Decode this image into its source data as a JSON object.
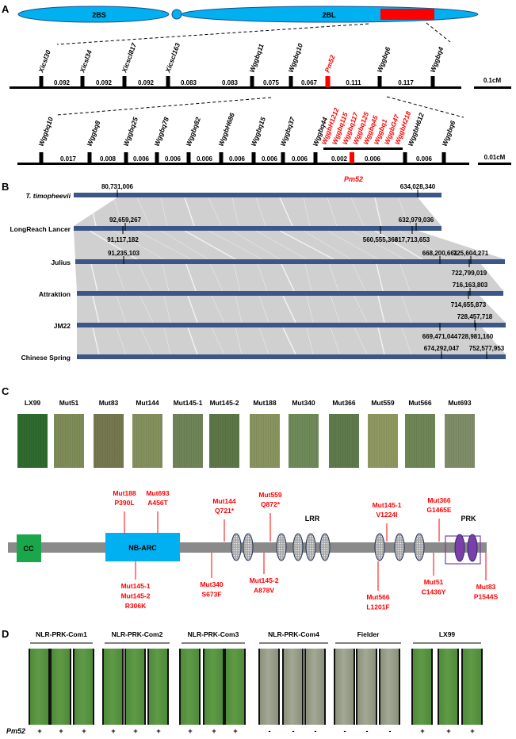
{
  "panel_labels": {
    "a": "A",
    "b": "B",
    "c": "C",
    "d": "D"
  },
  "colors": {
    "chromosome": "#00b0f0",
    "highlight_red": "#ff0000",
    "bar_blue": "#3b5687",
    "cc_green": "#1aa64a",
    "nbarc_blue": "#00b0f0",
    "prk_purple": "#7a3fa8",
    "backbone_gray": "#8a8a8a"
  },
  "panel_a": {
    "chromosome": {
      "short_arm": "2BS",
      "long_arm": "2BL"
    },
    "map1": {
      "markers": [
        "Xicsl30",
        "Xicsl34",
        "Xicscl817",
        "Xicscl163",
        "Wggbq11",
        "Wggbq10",
        "Pm52",
        "Wggbq6",
        "Wggbq4"
      ],
      "intervals": [
        "0.092",
        "0.092",
        "0.092",
        "0.083",
        "0.083",
        "0.075",
        "0.067",
        "0.111",
        "0.117"
      ],
      "scale": "0.1cM"
    },
    "map2": {
      "markers_black": [
        "Wggbq10",
        "Wggbq8",
        "Wggbq25",
        "Wggbq78",
        "Wggbq82",
        "WggbH686",
        "Wggbq15",
        "Wggbq37",
        "Wggbq44"
      ],
      "markers_red": [
        "WggbH1212",
        "Wggbq115",
        "Wggbq117",
        "Wggbq125",
        "Wggbq45",
        "Wggbq1",
        "WggbG47",
        "WggbH218"
      ],
      "markers_right": [
        "WggbH612",
        "Wggbq6"
      ],
      "intervals": [
        "0.017",
        "0.008",
        "0.006",
        "0.006",
        "0.006",
        "0.006",
        "0.006",
        "0.006",
        "0.002",
        "0.006",
        "0.006"
      ],
      "scale": "0.01cM"
    }
  },
  "panel_b": {
    "gene_label": "Pm52",
    "genomes": [
      {
        "name": "T. timopheevii",
        "above": [
          "80,731,006",
          "634,028,340"
        ],
        "below": []
      },
      {
        "name": "LongReach Lancer",
        "above": [
          "92,659,267",
          "632,979,036"
        ],
        "below": [
          "91,117,182",
          "560,555,363",
          "617,713,653"
        ]
      },
      {
        "name": "Julius",
        "above": [
          "91,235,103",
          "668,200,661",
          "725,604,271"
        ],
        "below": [
          "722,799,019"
        ]
      },
      {
        "name": "Attraktion",
        "above": [
          "716,163,803"
        ],
        "below": [
          "714,655,873"
        ]
      },
      {
        "name": "JM22",
        "above": [
          "728,457,718"
        ],
        "below": [
          "669,471,044",
          "728,981,160"
        ]
      },
      {
        "name": "Chinese Spring",
        "above": [
          "674,292,047",
          "752,577,953"
        ],
        "below": []
      }
    ]
  },
  "panel_c": {
    "lines": [
      "LX99",
      "Mut51",
      "Mut83",
      "Mut144",
      "Mut145-1",
      "Mut145-2",
      "Mut188",
      "Mut340",
      "Mut366",
      "Mut559",
      "Mut566",
      "Mut693"
    ],
    "domains": {
      "cc": "CC",
      "nbarc": "NB-ARC",
      "lrr": "LRR",
      "prk": "PRK"
    },
    "mutations_above": [
      {
        "lines": [
          "Mut188",
          "P390L"
        ]
      },
      {
        "lines": [
          "Mut693",
          "A456T"
        ]
      },
      {
        "lines": [
          "Mut144",
          "Q721*"
        ]
      },
      {
        "lines": [
          "Mut559",
          "Q872*"
        ]
      },
      {
        "lines": [
          "Mut145-1",
          "V1224I"
        ]
      },
      {
        "lines": [
          "Mut366",
          "G1465E"
        ]
      }
    ],
    "mutations_below": [
      {
        "lines": [
          "Mut145-1",
          "Mut145-2",
          "R306K"
        ]
      },
      {
        "lines": [
          "Mut340",
          "S673F"
        ]
      },
      {
        "lines": [
          "Mut145-2",
          "A878V"
        ]
      },
      {
        "lines": [
          "Mut566",
          "L1201F"
        ]
      },
      {
        "lines": [
          "Mut51",
          "C1436Y"
        ]
      },
      {
        "lines": [
          "Mut83",
          "P1544S"
        ]
      }
    ]
  },
  "panel_d": {
    "row_label": "Pm52",
    "groups": [
      {
        "name": "NLR-PRK-Com1",
        "status": [
          "+",
          "+",
          "+"
        ]
      },
      {
        "name": "NLR-PRK-Com2",
        "status": [
          "+",
          "+",
          "+"
        ]
      },
      {
        "name": "NLR-PRK-Com3",
        "status": [
          "+",
          "+",
          "+"
        ]
      },
      {
        "name": "NLR-PRK-Com4",
        "status": [
          "-",
          "-",
          "-"
        ]
      },
      {
        "name": "Fielder",
        "status": [
          "-",
          "-",
          "-"
        ]
      },
      {
        "name": "LX99",
        "status": [
          "+",
          "+",
          "+"
        ]
      }
    ]
  }
}
